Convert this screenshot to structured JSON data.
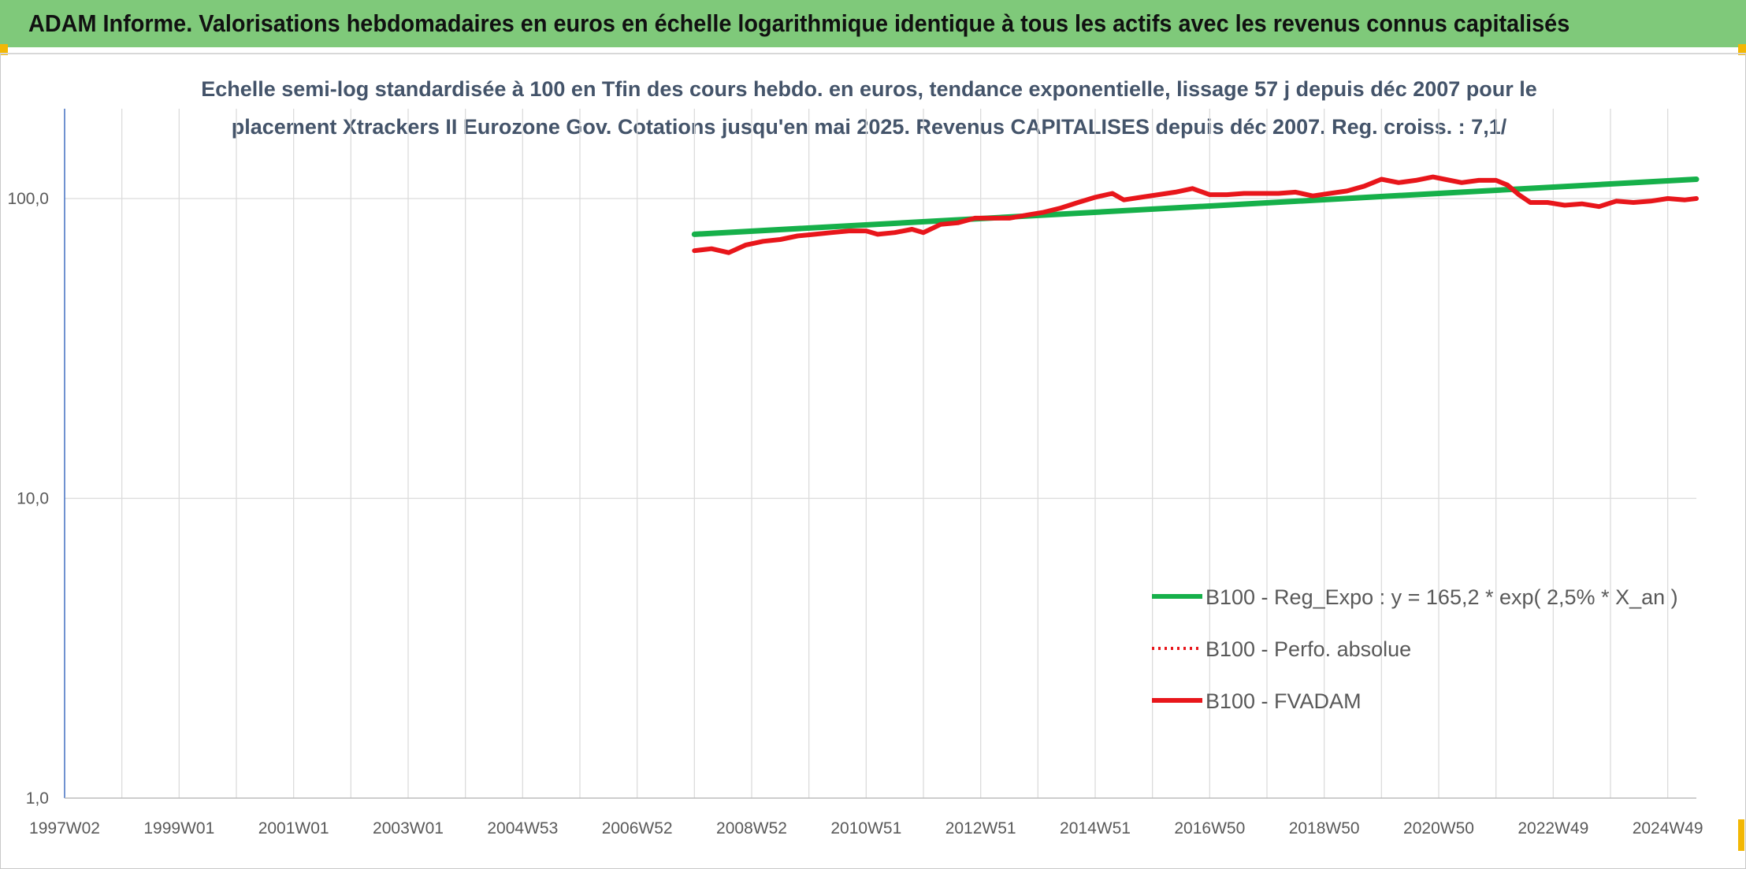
{
  "header": {
    "title": "ADAM Informe. Valorisations hebdomadaires en euros en échelle logarithmique identique à tous les actifs avec les revenus connus capitalisés"
  },
  "colors": {
    "banner": "#7fc97a",
    "trend_series": "#16b04a",
    "perf_series": "#e8161b",
    "subtitle_text": "#44546a"
  },
  "chart_data": {
    "type": "line",
    "title_lines": [
      "Echelle semi-log standardisée à 100 en Tfin des cours hebdo. en euros, tendance exponentielle, lissage 57 j depuis déc 2007 pour le",
      "placement Xtrackers II Eurozone Gov. Cotations jusqu'en mai 2025. Revenus CAPITALISES depuis déc 2007. Reg. croiss. : 7,1/"
    ],
    "y_scale": "log",
    "ylim": [
      1,
      200
    ],
    "y_ticks": [
      {
        "value": 1,
        "label": "1,0"
      },
      {
        "value": 10,
        "label": "10,0"
      },
      {
        "value": 100,
        "label": "100,0"
      }
    ],
    "xlim": [
      1997.0,
      2025.5
    ],
    "x_ticks": [
      {
        "value": 1997.0,
        "label": "1997W02"
      },
      {
        "value": 1999.0,
        "label": "1999W01"
      },
      {
        "value": 2001.0,
        "label": "2001W01"
      },
      {
        "value": 2003.0,
        "label": "2003W01"
      },
      {
        "value": 2005.0,
        "label": "2004W53"
      },
      {
        "value": 2007.0,
        "label": "2006W52"
      },
      {
        "value": 2009.0,
        "label": "2008W52"
      },
      {
        "value": 2011.0,
        "label": "2010W51"
      },
      {
        "value": 2013.0,
        "label": "2012W51"
      },
      {
        "value": 2015.0,
        "label": "2014W51"
      },
      {
        "value": 2017.0,
        "label": "2016W50"
      },
      {
        "value": 2019.0,
        "label": "2018W50"
      },
      {
        "value": 2021.0,
        "label": "2020W50"
      },
      {
        "value": 2023.0,
        "label": "2022W49"
      },
      {
        "value": 2025.0,
        "label": "2024W49"
      }
    ],
    "x_gridlines": [
      1997.0,
      1998.0,
      1999.0,
      2000.0,
      2001.0,
      2002.0,
      2003.0,
      2004.0,
      2005.0,
      2006.0,
      2007.0,
      2008.0,
      2009.0,
      2010.0,
      2011.0,
      2012.0,
      2013.0,
      2014.0,
      2015.0,
      2016.0,
      2017.0,
      2018.0,
      2019.0,
      2020.0,
      2021.0,
      2022.0,
      2023.0,
      2024.0,
      2025.0
    ],
    "grid": true,
    "legend_position": "lower-right",
    "series": [
      {
        "name": "B100 - Reg_Expo : y = 165,2 * exp( 2,5% *  X_an )",
        "style": "solid",
        "color": "#16b04a",
        "x": [
          2008.0,
          2025.5
        ],
        "y": [
          76.0,
          116.0
        ]
      },
      {
        "name": "B100 - Perfo. absolue",
        "style": "dotted",
        "color": "#e8161b",
        "x": [],
        "y": []
      },
      {
        "name": "B100 - FVADAM",
        "style": "solid",
        "color": "#e8161b",
        "x": [
          2008.0,
          2008.3,
          2008.6,
          2008.9,
          2009.2,
          2009.5,
          2009.8,
          2010.1,
          2010.4,
          2010.7,
          2011.0,
          2011.2,
          2011.5,
          2011.8,
          2012.0,
          2012.3,
          2012.6,
          2012.9,
          2013.2,
          2013.5,
          2013.8,
          2014.1,
          2014.4,
          2014.7,
          2015.0,
          2015.3,
          2015.5,
          2015.8,
          2016.1,
          2016.4,
          2016.7,
          2017.0,
          2017.3,
          2017.6,
          2017.9,
          2018.2,
          2018.5,
          2018.8,
          2019.1,
          2019.4,
          2019.7,
          2020.0,
          2020.3,
          2020.6,
          2020.9,
          2021.1,
          2021.4,
          2021.7,
          2022.0,
          2022.2,
          2022.4,
          2022.6,
          2022.9,
          2023.2,
          2023.5,
          2023.8,
          2024.1,
          2024.4,
          2024.7,
          2025.0,
          2025.3,
          2025.5
        ],
        "y": [
          67,
          68,
          66,
          70,
          72,
          73,
          75,
          76,
          77,
          78,
          78,
          76,
          77,
          79,
          77,
          82,
          83,
          86,
          86,
          86,
          88,
          90,
          93,
          97,
          101,
          104,
          99,
          101,
          103,
          105,
          108,
          103,
          103,
          104,
          104,
          104,
          105,
          102,
          104,
          106,
          110,
          116,
          113,
          115,
          118,
          116,
          113,
          115,
          115,
          111,
          103,
          97,
          97,
          95,
          96,
          94,
          98,
          97,
          98,
          100,
          99,
          100
        ]
      }
    ]
  }
}
